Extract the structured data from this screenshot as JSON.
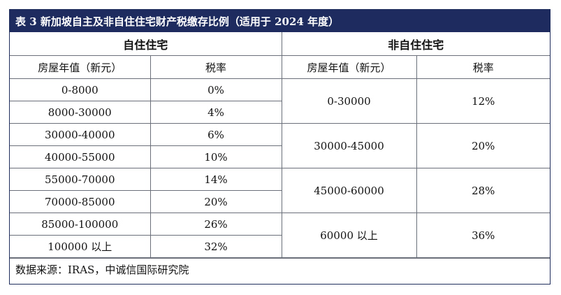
{
  "caption": "表 3 新加坡自主及非自住住宅财产税缴存比例（适用于 2024 年度）",
  "groups": {
    "owner": "自住住宅",
    "non_owner": "非自住住宅"
  },
  "columns": {
    "owner_value": "房屋年值（新元）",
    "owner_rate": "税率",
    "non_owner_value": "房屋年值（新元）",
    "non_owner_rate": "税率"
  },
  "owner_rows": [
    {
      "range": "0-8000",
      "rate": "0%"
    },
    {
      "range": "8000-30000",
      "rate": "4%"
    },
    {
      "range": "30000-40000",
      "rate": "6%"
    },
    {
      "range": "40000-55000",
      "rate": "10%"
    },
    {
      "range": "55000-70000",
      "rate": "14%"
    },
    {
      "range": "70000-85000",
      "rate": "20%"
    },
    {
      "range": "85000-100000",
      "rate": "26%"
    },
    {
      "range": "100000 以上",
      "rate": "32%"
    }
  ],
  "non_owner_rows": [
    {
      "range": "0-30000",
      "rate": "12%"
    },
    {
      "range": "30000-45000",
      "rate": "20%"
    },
    {
      "range": "45000-60000",
      "rate": "28%"
    },
    {
      "range": "60000 以上",
      "rate": "36%"
    }
  ],
  "source": "数据来源：IRAS，中诚信国际研究院",
  "colors": {
    "caption_background": "#1d2b5e",
    "caption_text": "#ffffff",
    "grid_line": "#6a6f7a"
  }
}
